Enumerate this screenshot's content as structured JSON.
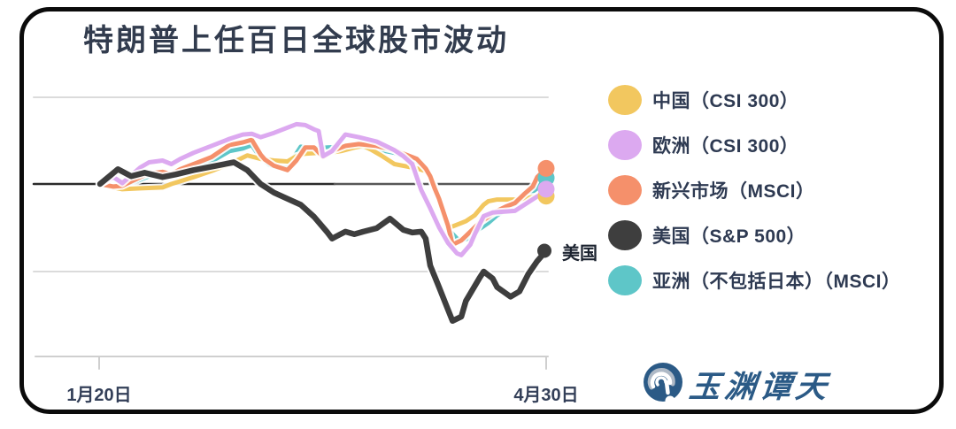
{
  "title": "特朗普上任百日全球股市波动",
  "colors": {
    "china": "#F2C75F",
    "europe": "#DCA9F0",
    "emerging": "#F5906B",
    "us": "#3E3E3E",
    "asia": "#5EC6C8",
    "title_text": "#323C4E",
    "legend_text": "#2E3A52",
    "axis_text": "#333F58",
    "annotation_text": "#1C2330",
    "gridline": "#DBDBDB",
    "axis_line": "#CFCFCF",
    "zero_line_left": "#2B2B2B",
    "zero_line_right": "#575757",
    "logo_blue": "#2B5A86",
    "card_border": "#0B0B0B"
  },
  "legend": {
    "items": [
      {
        "label": "中国（CSI 300）",
        "color": "china"
      },
      {
        "label": "欧洲（CSI 300）",
        "color": "europe"
      },
      {
        "label": "新兴市场（MSCI）",
        "color": "emerging"
      },
      {
        "label": "美国（S&P 500）",
        "color": "us"
      },
      {
        "label": "亚洲（不包括日本）（MSCI）",
        "color": "asia"
      }
    ]
  },
  "annotations": {
    "us_endpoint_label": "美国"
  },
  "x_axis": {
    "start_label": "1月20日",
    "end_label": "4月30日"
  },
  "logo": {
    "name": "玉渊谭天"
  },
  "chart_data": {
    "type": "line",
    "title": "特朗普上任百日全球股市波动",
    "x": {
      "start_label": "1月20日",
      "end_label": "4月30日",
      "domain_days": [
        0,
        100
      ],
      "tick_labels_shown": [
        "1月20日",
        "4月30日"
      ]
    },
    "y": {
      "unit": "percent change since 1月20日 (implied, unlabeled axis)",
      "gridlines_pct": [
        10,
        0,
        -10,
        -20
      ],
      "ylim": [
        -20,
        10
      ],
      "tick_labels_shown": false
    },
    "baseline_pct": 0,
    "legend_position": "right",
    "grid": "horizontal-only",
    "series": [
      {
        "name": "asia",
        "legend_label": "亚洲（不包括日本）（MSCI）",
        "color": "asia",
        "end_pct": 0.7,
        "points": [
          [
            0,
            0
          ],
          [
            3,
            -0.3
          ],
          [
            5,
            -0.2
          ],
          [
            9,
            0.5
          ],
          [
            11,
            0.9
          ],
          [
            14,
            1.1
          ],
          [
            16,
            0.9
          ],
          [
            18,
            1.3
          ],
          [
            21,
            1.9
          ],
          [
            25,
            2.6
          ],
          [
            29,
            3.8
          ],
          [
            32,
            4.1
          ],
          [
            34,
            4.5
          ],
          [
            36,
            3.0
          ],
          [
            38,
            2.2
          ],
          [
            40,
            1.9
          ],
          [
            42,
            1.9
          ],
          [
            45,
            4.3
          ],
          [
            48,
            4.1
          ],
          [
            51,
            4.2
          ],
          [
            55,
            4.3
          ],
          [
            58,
            4.3
          ],
          [
            62,
            4.0
          ],
          [
            66,
            3.6
          ],
          [
            69,
            3.0
          ],
          [
            72,
            2.4
          ],
          [
            74,
            1.0
          ],
          [
            76,
            -2.2
          ],
          [
            78,
            -5.2
          ],
          [
            80,
            -6.3
          ],
          [
            81,
            -6.5
          ],
          [
            83,
            -6.2
          ],
          [
            85,
            -5.2
          ],
          [
            87,
            -4.5
          ],
          [
            89,
            -3.6
          ],
          [
            91,
            -3.0
          ],
          [
            93,
            -2.4
          ],
          [
            95,
            -1.6
          ],
          [
            98,
            -0.5
          ],
          [
            100,
            0.7
          ]
        ]
      },
      {
        "name": "china",
        "legend_label": "中国（CSI 300）",
        "color": "china",
        "end_pct": -1.4,
        "points": [
          [
            0,
            0
          ],
          [
            3,
            -0.4
          ],
          [
            5,
            -0.6
          ],
          [
            9,
            -0.5
          ],
          [
            14,
            -0.4
          ],
          [
            16,
            0.0
          ],
          [
            21,
            0.8
          ],
          [
            25,
            1.5
          ],
          [
            29,
            2.3
          ],
          [
            33,
            3.3
          ],
          [
            36,
            2.9
          ],
          [
            39,
            2.7
          ],
          [
            42,
            2.6
          ],
          [
            44,
            3.2
          ],
          [
            46,
            3.5
          ],
          [
            49,
            3.6
          ],
          [
            50,
            3.5
          ],
          [
            54,
            3.8
          ],
          [
            57,
            4.2
          ],
          [
            59,
            4.4
          ],
          [
            61,
            3.9
          ],
          [
            63,
            3.3
          ],
          [
            66,
            2.3
          ],
          [
            69,
            2.0
          ],
          [
            71,
            1.8
          ],
          [
            73,
            1.5
          ],
          [
            74,
            1.0
          ],
          [
            75,
            -0.3
          ],
          [
            76,
            -1.8
          ],
          [
            77,
            -3.5
          ],
          [
            78,
            -5.1
          ],
          [
            80,
            -4.7
          ],
          [
            82,
            -4.3
          ],
          [
            84,
            -3.6
          ],
          [
            86,
            -2.4
          ],
          [
            87,
            -2.0
          ],
          [
            89,
            -1.8
          ],
          [
            93,
            -1.8
          ],
          [
            95,
            -1.7
          ],
          [
            97,
            -1.5
          ],
          [
            100,
            -1.4
          ]
        ]
      },
      {
        "name": "emerging",
        "legend_label": "新兴市场（MSCI）",
        "color": "emerging",
        "end_pct": 1.8,
        "points": [
          [
            0,
            0
          ],
          [
            3,
            -0.3
          ],
          [
            5,
            -0.2
          ],
          [
            9,
            0.8
          ],
          [
            11,
            1.2
          ],
          [
            14,
            1.4
          ],
          [
            16,
            1.1
          ],
          [
            18,
            1.7
          ],
          [
            21,
            2.3
          ],
          [
            25,
            3.1
          ],
          [
            29,
            4.5
          ],
          [
            32,
            4.8
          ],
          [
            34,
            5.1
          ],
          [
            36,
            3.4
          ],
          [
            37,
            2.8
          ],
          [
            39,
            2.1
          ],
          [
            42,
            1.6
          ],
          [
            44,
            2.7
          ],
          [
            46,
            4.2
          ],
          [
            48,
            4.2
          ],
          [
            50,
            3.1
          ],
          [
            52,
            3.8
          ],
          [
            55,
            4.4
          ],
          [
            58,
            4.6
          ],
          [
            62,
            4.4
          ],
          [
            66,
            3.9
          ],
          [
            69,
            3.3
          ],
          [
            71,
            2.9
          ],
          [
            73,
            1.8
          ],
          [
            74,
            0.9
          ],
          [
            75,
            -0.5
          ],
          [
            76,
            -1.7
          ],
          [
            78,
            -4.8
          ],
          [
            79,
            -7.0
          ],
          [
            81,
            -6.5
          ],
          [
            83,
            -5.5
          ],
          [
            85,
            -4.5
          ],
          [
            87,
            -3.8
          ],
          [
            89,
            -3.1
          ],
          [
            91,
            -2.6
          ],
          [
            93,
            -2.2
          ],
          [
            95,
            -1.2
          ],
          [
            97,
            -0.3
          ],
          [
            98,
            0.8
          ],
          [
            100,
            1.8
          ]
        ]
      },
      {
        "name": "europe",
        "legend_label": "欧洲（CSI 300）",
        "color": "europe",
        "end_pct": -0.6,
        "points": [
          [
            0,
            0
          ],
          [
            3,
            0.8
          ],
          [
            5,
            0.1
          ],
          [
            9,
            1.9
          ],
          [
            11,
            2.5
          ],
          [
            14,
            2.7
          ],
          [
            16,
            2.3
          ],
          [
            18,
            2.9
          ],
          [
            21,
            3.6
          ],
          [
            25,
            4.4
          ],
          [
            29,
            5.2
          ],
          [
            32,
            5.7
          ],
          [
            34,
            5.8
          ],
          [
            36,
            5.4
          ],
          [
            39,
            5.9
          ],
          [
            42,
            6.5
          ],
          [
            44,
            6.9
          ],
          [
            46,
            6.8
          ],
          [
            48,
            6.3
          ],
          [
            49,
            6.1
          ],
          [
            50,
            3.2
          ],
          [
            52,
            3.8
          ],
          [
            55,
            5.7
          ],
          [
            58,
            5.4
          ],
          [
            62,
            4.9
          ],
          [
            64,
            4.4
          ],
          [
            66,
            3.9
          ],
          [
            68,
            3.2
          ],
          [
            70,
            2.3
          ],
          [
            71,
            0.8
          ],
          [
            72,
            -0.7
          ],
          [
            74,
            -2.8
          ],
          [
            76,
            -5.0
          ],
          [
            78,
            -6.8
          ],
          [
            80,
            -8.0
          ],
          [
            81,
            -8.2
          ],
          [
            83,
            -7.0
          ],
          [
            84,
            -5.8
          ],
          [
            86,
            -3.7
          ],
          [
            88,
            -3.3
          ],
          [
            93,
            -3.1
          ],
          [
            96,
            -2.1
          ],
          [
            99,
            -1.1
          ],
          [
            100,
            -0.6
          ]
        ]
      },
      {
        "name": "us",
        "legend_label": "美国（S&P 500）",
        "color": "us",
        "end_pct": -7.7,
        "endpoint_annotation": "美国",
        "points": [
          [
            0,
            0
          ],
          [
            4,
            1.7
          ],
          [
            7,
            0.9
          ],
          [
            10,
            1.3
          ],
          [
            14,
            0.8
          ],
          [
            17,
            1.1
          ],
          [
            21,
            1.6
          ],
          [
            25,
            2.0
          ],
          [
            30,
            2.5
          ],
          [
            33,
            1.6
          ],
          [
            36,
            0.0
          ],
          [
            39,
            -1.0
          ],
          [
            42,
            -1.7
          ],
          [
            45,
            -2.4
          ],
          [
            48,
            -3.8
          ],
          [
            51,
            -5.6
          ],
          [
            52,
            -6.3
          ],
          [
            55,
            -5.5
          ],
          [
            57,
            -5.8
          ],
          [
            59,
            -5.5
          ],
          [
            62,
            -5.1
          ],
          [
            65,
            -4.0
          ],
          [
            68,
            -5.3
          ],
          [
            70,
            -5.6
          ],
          [
            72,
            -5.5
          ],
          [
            73,
            -6.3
          ],
          [
            74,
            -9.4
          ],
          [
            76,
            -11.9
          ],
          [
            78,
            -14.5
          ],
          [
            79,
            -15.8
          ],
          [
            81,
            -15.3
          ],
          [
            82,
            -13.5
          ],
          [
            85,
            -10.9
          ],
          [
            86,
            -10.1
          ],
          [
            88,
            -10.9
          ],
          [
            89,
            -11.9
          ],
          [
            92,
            -13.0
          ],
          [
            94,
            -12.4
          ],
          [
            96,
            -10.4
          ],
          [
            98,
            -8.9
          ],
          [
            100,
            -7.7
          ]
        ]
      }
    ]
  }
}
